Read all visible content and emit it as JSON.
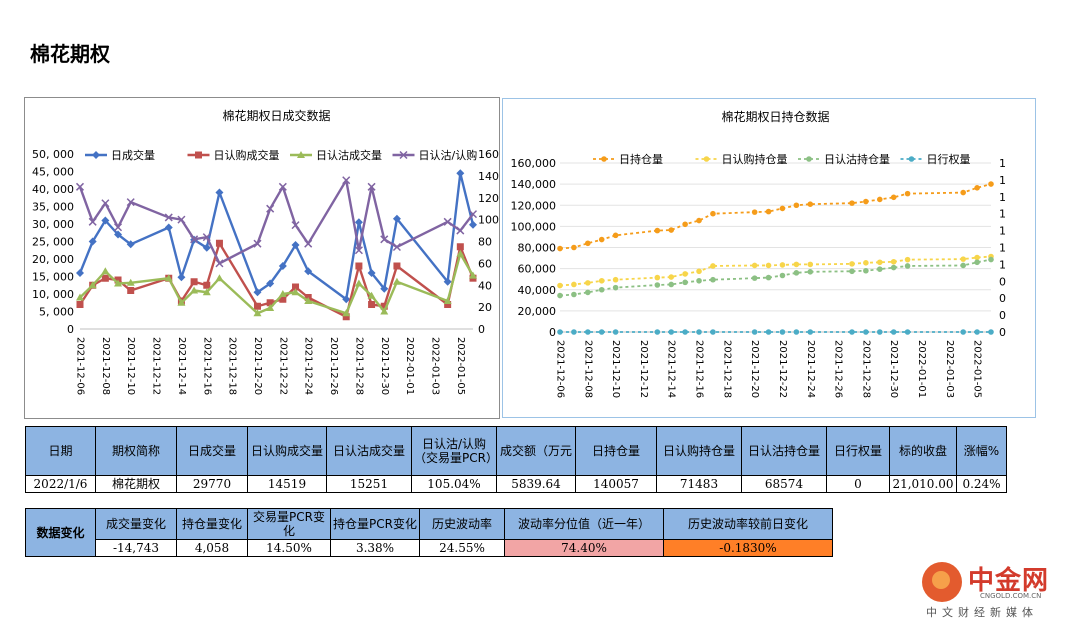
{
  "page_title": "棉花期权",
  "colors": {
    "blue": "#4472c4",
    "red": "#c0504d",
    "green": "#9bbb59",
    "purple": "#8064a2",
    "orange": "#f59c1a",
    "yellow": "#f7d54a",
    "lightgreen": "#8cc084",
    "teal": "#4bacc6"
  },
  "chart_data": [
    {
      "type": "line",
      "title": "棉花期权日成交数据",
      "x": [
        "2021-12-06",
        "2021-12-07",
        "2021-12-08",
        "2021-12-09",
        "2021-12-10",
        "2021-12-13",
        "2021-12-14",
        "2021-12-15",
        "2021-12-16",
        "2021-12-17",
        "2021-12-20",
        "2021-12-21",
        "2021-12-22",
        "2021-12-23",
        "2021-12-24",
        "2021-12-27",
        "2021-12-28",
        "2021-12-29",
        "2021-12-30",
        "2021-12-31",
        "2022-01-04",
        "2022-01-05",
        "2022-01-06"
      ],
      "tick_labels": [
        "2021-12-06",
        "2021-12-08",
        "2021-12-10",
        "2021-12-12",
        "2021-12-14",
        "2021-12-16",
        "2021-12-18",
        "2021-12-20",
        "2021-12-22",
        "2021-12-24",
        "2021-12-26",
        "2021-12-28",
        "2021-12-30",
        "2022-01-01",
        "2022-01-03",
        "2022-01-05"
      ],
      "x_start": "2021-12-06",
      "x_end": "2022-01-06",
      "ylim_left": [
        0,
        50000
      ],
      "yticks_left": [
        "0",
        "5, 000",
        "10, 000",
        "15, 000",
        "20, 000",
        "25, 000",
        "30, 000",
        "35, 000",
        "40, 000",
        "45, 000",
        "50, 000"
      ],
      "ylim_right": [
        0,
        160
      ],
      "yticks_right": [
        "0",
        "20",
        "40",
        "60",
        "80",
        "100",
        "120",
        "140",
        "160"
      ],
      "legend_position": "top",
      "series": [
        {
          "name": "日成交量",
          "axis": "left",
          "color": "#4472c4",
          "marker": "diamond",
          "values": [
            16000,
            25000,
            31000,
            27000,
            24200,
            29000,
            14800,
            25500,
            23200,
            39000,
            10500,
            13000,
            18000,
            24000,
            16500,
            8500,
            30500,
            16000,
            11500,
            31500,
            13500,
            44500,
            29770
          ]
        },
        {
          "name": "日认购成交量",
          "axis": "left",
          "color": "#c0504d",
          "marker": "square",
          "values": [
            7000,
            12500,
            14500,
            14000,
            11000,
            14500,
            8000,
            13500,
            12500,
            24500,
            6500,
            7500,
            8500,
            12000,
            9000,
            3500,
            18000,
            7000,
            6500,
            18000,
            7000,
            23500,
            14519
          ]
        },
        {
          "name": "日认沽成交量",
          "axis": "left",
          "color": "#9bbb59",
          "marker": "triangle",
          "values": [
            9000,
            12500,
            16500,
            13000,
            13200,
            14500,
            7500,
            11000,
            10500,
            14500,
            4500,
            6000,
            10000,
            10500,
            8000,
            4500,
            13000,
            9500,
            5000,
            13500,
            8000,
            21500,
            15251
          ]
        },
        {
          "name": "日认沽/认购",
          "axis": "right",
          "color": "#8064a2",
          "marker": "x",
          "values": [
            130,
            98,
            115,
            93,
            116,
            102,
            100,
            82,
            84,
            60,
            78,
            110,
            130,
            95,
            78,
            136,
            72,
            130,
            82,
            75,
            98,
            90,
            105.04
          ]
        }
      ]
    },
    {
      "type": "line",
      "title": "棉花期权日持仓数据",
      "x": [
        "2021-12-06",
        "2021-12-07",
        "2021-12-08",
        "2021-12-09",
        "2021-12-10",
        "2021-12-13",
        "2021-12-14",
        "2021-12-15",
        "2021-12-16",
        "2021-12-17",
        "2021-12-20",
        "2021-12-21",
        "2021-12-22",
        "2021-12-23",
        "2021-12-24",
        "2021-12-27",
        "2021-12-28",
        "2021-12-29",
        "2021-12-30",
        "2021-12-31",
        "2022-01-04",
        "2022-01-05",
        "2022-01-06"
      ],
      "tick_labels": [
        "2021-12-06",
        "2021-12-08",
        "2021-12-10",
        "2021-12-12",
        "2021-12-14",
        "2021-12-16",
        "2021-12-18",
        "2021-12-20",
        "2021-12-22",
        "2021-12-24",
        "2021-12-26",
        "2021-12-28",
        "2021-12-30",
        "2022-01-01",
        "2022-01-03",
        "2022-01-05"
      ],
      "x_start": "2021-12-06",
      "x_end": "2022-01-06",
      "ylim_left": [
        0,
        160000
      ],
      "yticks_left": [
        "0",
        "20,000",
        "40,000",
        "60,000",
        "80,000",
        "100,000",
        "120,000",
        "140,000",
        "160,000"
      ],
      "yticks_right": [
        "0",
        "0",
        "0",
        "0",
        "1",
        "1",
        "1",
        "1",
        "1",
        "1",
        "1"
      ],
      "legend_position": "top",
      "series": [
        {
          "name": "日持仓量",
          "color": "#f59c1a",
          "values": [
            79000,
            80000,
            84000,
            87500,
            91500,
            96000,
            96500,
            102000,
            105500,
            112000,
            113500,
            114000,
            117000,
            120000,
            121000,
            122000,
            123500,
            125500,
            127500,
            131000,
            132000,
            136500,
            140057
          ]
        },
        {
          "name": "日认购持仓量",
          "color": "#f7d54a",
          "values": [
            44000,
            45000,
            46500,
            48500,
            49500,
            51500,
            52000,
            55000,
            57500,
            62500,
            63000,
            63000,
            63500,
            64000,
            64000,
            64500,
            65500,
            66000,
            66500,
            68500,
            69000,
            70500,
            71483
          ]
        },
        {
          "name": "日认沽持仓量",
          "color": "#8cc084",
          "values": [
            34500,
            35500,
            37500,
            40000,
            42000,
            44500,
            45000,
            47000,
            48500,
            49500,
            51000,
            51500,
            53500,
            56000,
            57000,
            57500,
            58000,
            59500,
            61000,
            62500,
            63000,
            66000,
            68574
          ]
        },
        {
          "name": "日行权量",
          "color": "#4bacc6",
          "values": [
            0,
            0,
            0,
            0,
            0,
            0,
            0,
            0,
            0,
            0,
            0,
            0,
            0,
            0,
            0,
            0,
            0,
            0,
            0,
            0,
            0,
            0,
            0
          ]
        }
      ]
    }
  ],
  "table1": {
    "headers": [
      "日期",
      "期权简称",
      "日成交量",
      "日认购成交量",
      "日认沽成交量",
      "日认沽/认购（交易量PCR）",
      "成交额（万元",
      "日持仓量",
      "日认购持仓量",
      "日认沽持仓量",
      "日行权量",
      "标的收盘",
      "涨幅%"
    ],
    "values": [
      "2022/1/6",
      "棉花期权",
      "29770",
      "14519",
      "15251",
      "105.04%",
      "5839.64",
      "140057",
      "71483",
      "68574",
      "0",
      "21,010.00",
      "0.24%"
    ]
  },
  "table2": {
    "row_header": "数据变化",
    "headers": [
      "成交量变化",
      "持仓量变化",
      "交易量PCR变化",
      "持仓量PCR变化",
      "历史波动率",
      "波动率分位值（近一年）",
      "历史波动率较前日变化"
    ],
    "values": [
      "-14,743",
      "4,058",
      "14.50%",
      "3.38%",
      "24.55%",
      "74.40%",
      "-0.1830%"
    ]
  },
  "logo": {
    "brand": "中金网",
    "domain": "CNGOLD.COM.CN",
    "slogan": "中文财经新媒体"
  }
}
